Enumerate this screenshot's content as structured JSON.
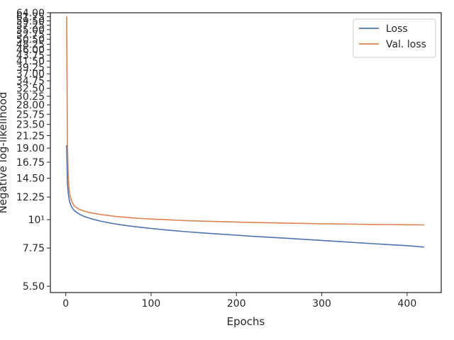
{
  "chart_data": {
    "type": "line",
    "xlabel": "Epochs",
    "ylabel": "Negative log-likelihood",
    "yscale": "log",
    "xlim": [
      -18,
      440
    ],
    "ylim": [
      5.2,
      64
    ],
    "x_ticks": [
      0,
      100,
      200,
      300,
      400
    ],
    "x_tick_labels": [
      "0",
      "100",
      "200",
      "300",
      "400"
    ],
    "y_ticks": [
      5.5,
      7.75,
      10,
      12.25,
      14.5,
      16.75,
      19.0,
      21.25,
      23.5,
      25.75,
      28.0,
      30.25,
      32.5,
      34.75,
      37.0,
      39.25,
      41.5,
      43.75,
      46.0,
      48.25,
      50.5,
      52.75,
      55.0,
      57.25,
      59.5,
      61.75,
      64.0
    ],
    "y_tick_labels": [
      "5.50",
      "7.75",
      "10¹",
      "12.25",
      "14.50",
      "16.75",
      "19.00",
      "21.25",
      "23.50",
      "25.75",
      "28.00",
      "30.25",
      "32.50",
      "34.75",
      "37.00",
      "39.25",
      "41.50",
      "43.75",
      "46.00",
      "48.25",
      "50.50",
      "52.75",
      "55.00",
      "57.25",
      "59.50",
      "61.75",
      "64.00"
    ],
    "legend_position": "top-right",
    "grid": false,
    "series": [
      {
        "name": "Loss",
        "color": "#4c72b0",
        "x": [
          1,
          2,
          3,
          4,
          5,
          7,
          10,
          15,
          20,
          25,
          30,
          40,
          50,
          60,
          70,
          80,
          90,
          100,
          120,
          140,
          160,
          180,
          200,
          220,
          240,
          260,
          280,
          300,
          320,
          340,
          360,
          380,
          400,
          420
        ],
        "y": [
          19.5,
          13.8,
          12.6,
          12.0,
          11.6,
          11.2,
          10.85,
          10.55,
          10.35,
          10.2,
          10.08,
          9.88,
          9.73,
          9.6,
          9.49,
          9.4,
          9.32,
          9.24,
          9.1,
          8.98,
          8.88,
          8.79,
          8.7,
          8.61,
          8.53,
          8.46,
          8.38,
          8.3,
          8.22,
          8.14,
          8.06,
          7.99,
          7.92,
          7.82
        ]
      },
      {
        "name": "Val. loss",
        "color": "#dd8452",
        "x": [
          1,
          2,
          3,
          4,
          5,
          7,
          10,
          15,
          20,
          25,
          30,
          40,
          50,
          60,
          70,
          80,
          90,
          100,
          120,
          140,
          160,
          180,
          200,
          220,
          240,
          260,
          280,
          300,
          320,
          340,
          360,
          380,
          400,
          420
        ],
        "y": [
          62.0,
          19.5,
          14.5,
          13.0,
          12.4,
          11.8,
          11.3,
          11.0,
          10.85,
          10.72,
          10.62,
          10.48,
          10.38,
          10.28,
          10.22,
          10.15,
          10.1,
          10.06,
          9.99,
          9.92,
          9.87,
          9.83,
          9.79,
          9.75,
          9.72,
          9.69,
          9.67,
          9.64,
          9.62,
          9.6,
          9.58,
          9.57,
          9.55,
          9.54
        ]
      }
    ]
  }
}
